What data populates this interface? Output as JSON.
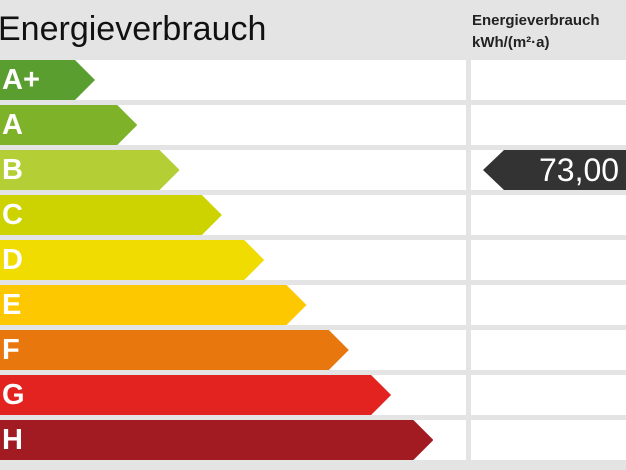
{
  "header": {
    "title": "Energieverbrauch",
    "column_title": "Energieverbrauch",
    "column_unit": "kWh/(m²·a)"
  },
  "classes": [
    {
      "label": "A+",
      "color": "#5a9e2f"
    },
    {
      "label": "A",
      "color": "#7db229"
    },
    {
      "label": "B",
      "color": "#b3cf35"
    },
    {
      "label": "C",
      "color": "#ccd300"
    },
    {
      "label": "D",
      "color": "#f0dc00"
    },
    {
      "label": "E",
      "color": "#fec800"
    },
    {
      "label": "F",
      "color": "#e8770e"
    },
    {
      "label": "G",
      "color": "#e2231f"
    },
    {
      "label": "H",
      "color": "#a21b22"
    }
  ],
  "value": {
    "text": "73,00",
    "class": "B",
    "color": "#333333"
  }
}
